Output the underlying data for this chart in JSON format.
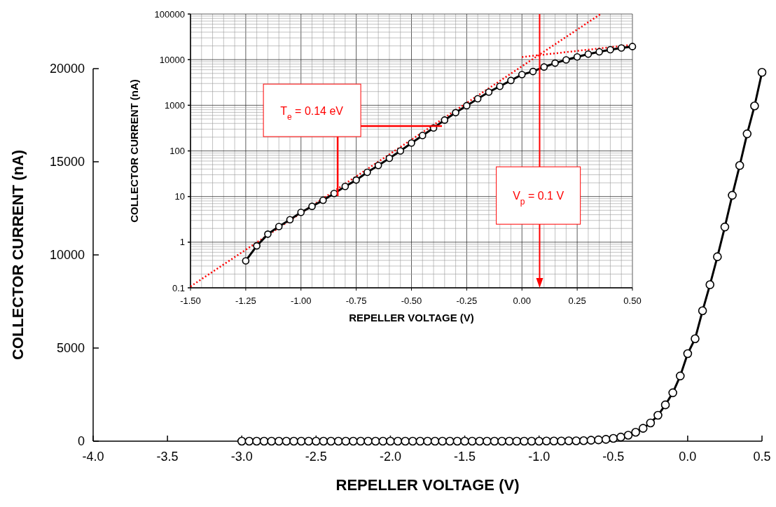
{
  "chart_data": [
    {
      "type": "line",
      "xlabel": "REPELLER VOLTAGE (V)",
      "ylabel": "COLLECTOR CURRENT (nA)",
      "xlim": [
        -4,
        0.5
      ],
      "ylim": [
        0,
        20000
      ],
      "xticks": [
        {
          "value": -4,
          "label": "-4.0"
        },
        {
          "value": -3.5,
          "label": "-3.5"
        },
        {
          "value": -3,
          "label": "-3.0"
        },
        {
          "value": -2.5,
          "label": "-2.5"
        },
        {
          "value": -2,
          "label": "-2.0"
        },
        {
          "value": -1.5,
          "label": "-1.5"
        },
        {
          "value": -1,
          "label": "-1.0"
        },
        {
          "value": -0.5,
          "label": "-0.5"
        },
        {
          "value": 0,
          "label": "0.0"
        },
        {
          "value": 0.5,
          "label": "0.5"
        }
      ],
      "yticks": [
        0,
        5000,
        10000,
        15000,
        20000
      ],
      "grid": false,
      "marker": "circle",
      "line_style": "solid",
      "series": [
        {
          "color": "#000000",
          "x": [
            -3,
            -2.95,
            -2.9,
            -2.85,
            -2.8,
            -2.75,
            -2.7,
            -2.65,
            -2.6,
            -2.55,
            -2.5,
            -2.45,
            -2.4,
            -2.35,
            -2.3,
            -2.25,
            -2.2,
            -2.15,
            -2.1,
            -2.05,
            -2,
            -1.95,
            -1.9,
            -1.85,
            -1.8,
            -1.75,
            -1.7,
            -1.65,
            -1.6,
            -1.55,
            -1.5,
            -1.45,
            -1.4,
            -1.35,
            -1.3,
            -1.25,
            -1.2,
            -1.15,
            -1.1,
            -1.05,
            -1,
            -0.95,
            -0.9,
            -0.85,
            -0.8,
            -0.75,
            -0.7,
            -0.65,
            -0.6,
            -0.55,
            -0.5,
            -0.45,
            -0.4,
            -0.35,
            -0.3,
            -0.25,
            -0.2,
            -0.15,
            -0.1,
            -0.05,
            0,
            0.05,
            0.1,
            0.15,
            0.2,
            0.25,
            0.3,
            0.35,
            0.4,
            0.45,
            0.5
          ],
          "values": [
            0,
            0,
            0,
            0,
            0,
            0,
            0,
            0,
            0,
            0,
            0,
            0,
            0,
            0,
            0,
            0,
            0,
            0,
            0,
            0,
            0,
            0,
            0,
            0,
            0,
            0,
            0,
            0,
            0,
            0,
            0,
            0,
            0,
            0,
            0,
            0,
            0,
            0,
            0,
            0,
            0,
            10,
            10,
            10,
            20,
            20,
            30,
            50,
            70,
            100,
            150,
            220,
            320,
            480,
            690,
            980,
            1390,
            1950,
            2600,
            3500,
            4700,
            5500,
            7000,
            8400,
            9900,
            11500,
            13200,
            14800,
            16500,
            18000,
            19800
          ]
        }
      ]
    },
    {
      "type": "line",
      "xlabel": "REPELLER VOLTAGE (V)",
      "ylabel": "COLLECTOR CURRENT (nA)",
      "xlim": [
        -1.5,
        0.5
      ],
      "ylim": [
        0.1,
        100000
      ],
      "log": "y",
      "xticks": [
        {
          "value": -1.5,
          "label": "-1.50"
        },
        {
          "value": -1.25,
          "label": "-1.25"
        },
        {
          "value": -1,
          "label": "-1.00"
        },
        {
          "value": -0.75,
          "label": "-0.75"
        },
        {
          "value": -0.5,
          "label": "-0.50"
        },
        {
          "value": -0.25,
          "label": "-0.25"
        },
        {
          "value": 0,
          "label": "0.00"
        },
        {
          "value": 0.25,
          "label": "0.25"
        },
        {
          "value": 0.5,
          "label": "0.50"
        }
      ],
      "yticks": [
        0.1,
        1,
        10,
        100,
        1000,
        10000,
        100000
      ],
      "grid": true,
      "series": [
        {
          "color": "#000000",
          "marker": "circle",
          "line_style": "solid",
          "x": [
            -1.25,
            -1.2,
            -1.15,
            -1.1,
            -1.05,
            -1,
            -0.95,
            -0.9,
            -0.85,
            -0.8,
            -0.75,
            -0.7,
            -0.65,
            -0.6,
            -0.55,
            -0.5,
            -0.45,
            -0.4,
            -0.35,
            -0.3,
            -0.25,
            -0.2,
            -0.15,
            -0.1,
            -0.05,
            0,
            0.05,
            0.1,
            0.15,
            0.2,
            0.25,
            0.3,
            0.35,
            0.4,
            0.45,
            0.5
          ],
          "values": [
            0.39,
            0.83,
            1.5,
            2.2,
            3.1,
            4.5,
            6.1,
            8.3,
            11.7,
            16.6,
            23,
            34,
            48,
            69,
            100,
            149,
            218,
            318,
            475,
            690,
            980,
            1390,
            1950,
            2600,
            3500,
            4700,
            5500,
            6900,
            8400,
            9900,
            11500,
            13200,
            14800,
            16500,
            18000,
            19400
          ]
        },
        {
          "color": "#ff0000",
          "marker": "none",
          "line_style": "dotted",
          "x": [
            -1.5,
            0.356
          ],
          "values": [
            0.107,
            100000
          ]
        },
        {
          "color": "#ff0000",
          "marker": "none",
          "line_style": "dotted",
          "x": [
            0,
            0.5
          ],
          "values": [
            11400,
            21200
          ]
        }
      ],
      "ref_lines": [
        {
          "axis": "x",
          "value": 0.08,
          "color": "#ff0000"
        }
      ],
      "annotations": [
        "T$_{e}$ = 0.14 eV",
        "V$_{p}$ = 0.1 V"
      ]
    }
  ]
}
